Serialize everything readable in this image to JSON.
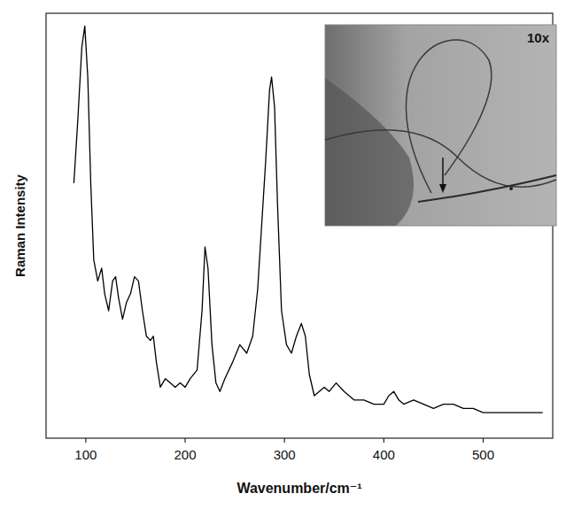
{
  "chart_data": {
    "type": "line",
    "x_label": "Wavenumber/cm⁻¹",
    "y_label": "Raman Intensity",
    "inset_label": "10x",
    "xlim": [
      60,
      570
    ],
    "xticks": [
      100,
      200,
      300,
      400,
      500
    ],
    "ylim": [
      0,
      100
    ],
    "yticks": [],
    "tick_labels": "x",
    "color": "#000000",
    "x": [
      88,
      92,
      96,
      99,
      102,
      105,
      108,
      112,
      116,
      119,
      123,
      127,
      130,
      133,
      137,
      141,
      145,
      149,
      153,
      157,
      161,
      165,
      168,
      171,
      175,
      180,
      185,
      190,
      195,
      200,
      205,
      212,
      217,
      220,
      223,
      227,
      231,
      235,
      240,
      248,
      255,
      262,
      268,
      273,
      277,
      281,
      285,
      287,
      290,
      293,
      297,
      302,
      307,
      312,
      317,
      321,
      325,
      330,
      335,
      340,
      345,
      352,
      360,
      370,
      380,
      390,
      400,
      405,
      410,
      415,
      420,
      430,
      440,
      450,
      460,
      470,
      480,
      490,
      500,
      510,
      520,
      530,
      540,
      550,
      560
    ],
    "values": [
      60,
      75,
      92,
      97,
      85,
      60,
      42,
      37,
      40,
      34,
      30,
      37,
      38,
      33,
      28,
      32,
      34,
      38,
      37,
      30,
      24,
      23,
      24,
      18,
      12,
      14,
      13,
      12,
      13,
      12,
      14,
      16,
      30,
      45,
      40,
      22,
      13,
      11,
      14,
      18,
      22,
      20,
      24,
      35,
      50,
      65,
      82,
      85,
      78,
      55,
      30,
      22,
      20,
      24,
      27,
      24,
      15,
      10,
      11,
      12,
      11,
      13,
      11,
      9,
      9,
      8,
      8,
      10,
      11,
      9,
      8,
      9,
      8,
      7,
      8,
      8,
      7,
      7,
      6,
      6,
      6,
      6,
      6,
      6,
      6
    ]
  }
}
